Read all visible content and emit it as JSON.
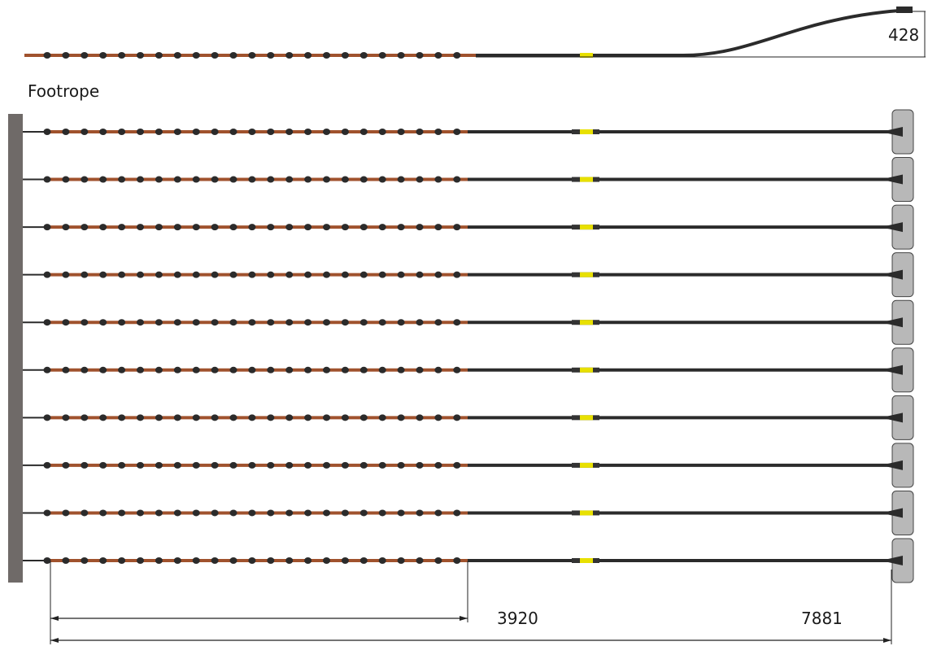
{
  "labels": {
    "footrope": "Footrope",
    "height_dimension": "428",
    "short_length_dimension": "3920",
    "total_length_dimension": "7881"
  },
  "side_view": {
    "shown": true
  },
  "plan_view": {
    "line_count": 10
  },
  "colors": {
    "beam": "#6f6a68",
    "rope": "#2b2b2b",
    "rubber_segment": "#a0522d",
    "marker": "#e8e000",
    "plate": "#b8b8b8",
    "dimension_line": "#222222"
  }
}
